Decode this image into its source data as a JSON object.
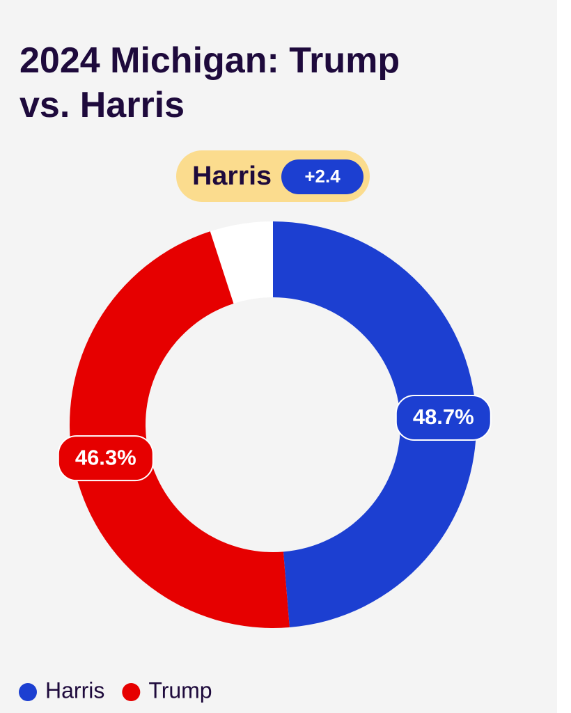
{
  "chart_data": {
    "type": "donut",
    "title": "2024 Michigan: Trump vs. Harris",
    "leader": "Harris",
    "lead_label": "+2.4",
    "ylim": [
      0,
      100
    ],
    "series": [
      {
        "name": "Harris",
        "color": "#1c3fd1",
        "values": [
          48.7
        ],
        "value_labels": [
          "48.7%"
        ]
      },
      {
        "name": "Trump",
        "color": "#e60000",
        "values": [
          46.3
        ],
        "value_labels": [
          "46.3%"
        ]
      }
    ],
    "track_color": "#ffffff",
    "leader_color": "#1c3fd1",
    "legend": "bottom"
  }
}
